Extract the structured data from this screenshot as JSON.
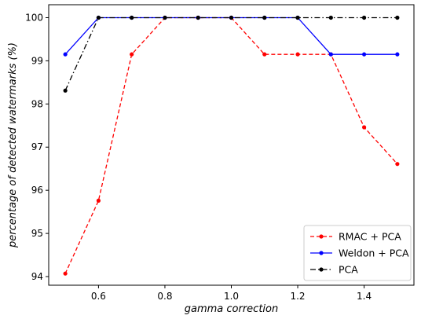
{
  "chart_data": {
    "type": "line",
    "title": "",
    "xlabel": "gamma correction",
    "ylabel": "percentage of detected watermarks (%)",
    "x": [
      0.5,
      0.6,
      0.7,
      0.8,
      0.9,
      1.0,
      1.1,
      1.2,
      1.3,
      1.4,
      1.5
    ],
    "xlim": [
      0.45,
      1.55
    ],
    "ylim": [
      93.8,
      100.3
    ],
    "xticks": [
      0.6,
      0.8,
      1.0,
      1.2,
      1.4
    ],
    "xtick_labels": [
      "0.6",
      "0.8",
      "1.0",
      "1.2",
      "1.4"
    ],
    "yticks": [
      94,
      95,
      96,
      97,
      98,
      99,
      100
    ],
    "ytick_labels": [
      "94",
      "95",
      "96",
      "97",
      "98",
      "99",
      "100"
    ],
    "grid": false,
    "legend_position": "bottom-right",
    "series": [
      {
        "name": "RMAC + PCA",
        "color": "#ff0000",
        "dash": "dashed",
        "values": [
          94.07,
          95.76,
          99.15,
          100,
          100,
          100,
          99.15,
          99.15,
          99.15,
          97.46,
          96.61
        ]
      },
      {
        "name": "Weldon + PCA",
        "color": "#0000ff",
        "dash": "solid",
        "values": [
          99.15,
          100,
          100,
          100,
          100,
          100,
          100,
          100,
          99.15,
          99.15,
          99.15
        ]
      },
      {
        "name": "PCA",
        "color": "#000000",
        "dash": "dashdot",
        "values": [
          98.31,
          100,
          100,
          100,
          100,
          100,
          100,
          100,
          100,
          100,
          100
        ]
      }
    ]
  }
}
